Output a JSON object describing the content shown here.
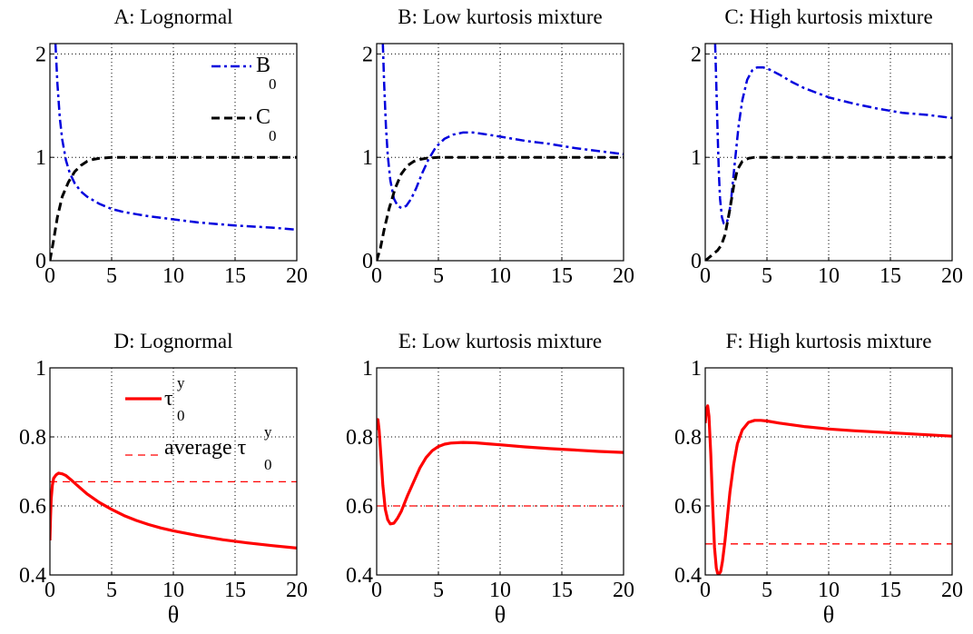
{
  "chart_data": [
    {
      "id": "A",
      "type": "line",
      "title": "A: Lognormal",
      "xlim": [
        0,
        20
      ],
      "ylim": [
        0,
        2.1
      ],
      "xticks": [
        "0",
        "5",
        "10",
        "15",
        "20"
      ],
      "yticks": [
        "0",
        "1",
        "2"
      ],
      "xlabel": "",
      "grid": true,
      "legend": {
        "placement": "top-right",
        "entries": [
          {
            "main": "B",
            "sub": "0",
            "series": 0
          },
          {
            "main": "C",
            "sub": "0",
            "series": 1
          }
        ]
      },
      "series": [
        {
          "name": "B0",
          "color": "#0000dd",
          "style": "dashdot",
          "x": [
            0.45,
            0.6,
            0.8,
            1.0,
            1.3,
            1.6,
            2.0,
            2.5,
            3,
            4,
            5,
            6,
            7,
            8,
            10,
            12,
            15,
            18,
            20
          ],
          "y": [
            2.1,
            1.72,
            1.38,
            1.17,
            0.97,
            0.85,
            0.75,
            0.67,
            0.62,
            0.55,
            0.5,
            0.47,
            0.45,
            0.43,
            0.4,
            0.37,
            0.34,
            0.32,
            0.3
          ]
        },
        {
          "name": "C0",
          "color": "#000000",
          "style": "dash",
          "x": [
            0,
            0.3,
            0.6,
            1.0,
            1.5,
            2.0,
            2.5,
            3,
            3.5,
            4,
            5,
            6,
            8,
            10,
            15,
            20
          ],
          "y": [
            0,
            0.2,
            0.42,
            0.62,
            0.76,
            0.86,
            0.92,
            0.96,
            0.98,
            0.99,
            1,
            1,
            1,
            1,
            1,
            1
          ]
        }
      ]
    },
    {
      "id": "B",
      "type": "line",
      "title": "B: Low kurtosis mixture",
      "xlim": [
        0,
        20
      ],
      "ylim": [
        0,
        2.1
      ],
      "xticks": [
        "0",
        "5",
        "10",
        "15",
        "20"
      ],
      "yticks": [
        "0",
        "1",
        "2"
      ],
      "xlabel": "",
      "grid": true,
      "series": [
        {
          "name": "B0",
          "color": "#0000dd",
          "style": "dashdot",
          "x": [
            0.5,
            0.6,
            0.75,
            0.9,
            1.1,
            1.4,
            1.7,
            2.0,
            2.4,
            2.8,
            3.2,
            3.7,
            4.2,
            4.8,
            5.5,
            6.2,
            7,
            7.8,
            9,
            10,
            12,
            14,
            16,
            18,
            20
          ],
          "y": [
            2.1,
            1.72,
            1.3,
            1.02,
            0.78,
            0.6,
            0.53,
            0.51,
            0.53,
            0.6,
            0.7,
            0.85,
            0.98,
            1.1,
            1.18,
            1.22,
            1.24,
            1.24,
            1.22,
            1.2,
            1.16,
            1.13,
            1.09,
            1.06,
            1.03
          ]
        },
        {
          "name": "C0",
          "color": "#000000",
          "style": "dash",
          "x": [
            0,
            0.3,
            0.6,
            1.0,
            1.5,
            2.0,
            2.5,
            3,
            3.5,
            4,
            5,
            6,
            8,
            10,
            15,
            20
          ],
          "y": [
            0,
            0.12,
            0.3,
            0.5,
            0.7,
            0.84,
            0.92,
            0.96,
            0.98,
            0.99,
            1,
            1,
            1,
            1,
            1,
            1
          ]
        }
      ]
    },
    {
      "id": "C",
      "type": "line",
      "title": "C: High kurtosis mixture",
      "xlim": [
        0,
        20
      ],
      "ylim": [
        0,
        2.1
      ],
      "xticks": [
        "0",
        "5",
        "10",
        "15",
        "20"
      ],
      "yticks": [
        "0",
        "1",
        "2"
      ],
      "xlabel": "",
      "grid": true,
      "series": [
        {
          "name": "B0",
          "color": "#0000dd",
          "style": "dashdot",
          "x": [
            0.8,
            0.9,
            1.0,
            1.1,
            1.2,
            1.35,
            1.5,
            1.7,
            1.9,
            2.1,
            2.4,
            2.7,
            3.0,
            3.4,
            3.8,
            4.2,
            4.7,
            5.2,
            6,
            7,
            8,
            10,
            12,
            14,
            16,
            18,
            20
          ],
          "y": [
            2.1,
            1.7,
            1.25,
            0.85,
            0.6,
            0.42,
            0.36,
            0.36,
            0.42,
            0.6,
            0.95,
            1.3,
            1.55,
            1.75,
            1.84,
            1.87,
            1.87,
            1.85,
            1.8,
            1.73,
            1.67,
            1.58,
            1.52,
            1.47,
            1.43,
            1.41,
            1.38
          ]
        },
        {
          "name": "C0",
          "color": "#000000",
          "style": "dash",
          "x": [
            0,
            0.3,
            0.6,
            1.0,
            1.3,
            1.6,
            2.0,
            2.3,
            2.6,
            3.0,
            3.5,
            4,
            5,
            6,
            8,
            10,
            15,
            20
          ],
          "y": [
            0,
            0.03,
            0.06,
            0.1,
            0.15,
            0.25,
            0.5,
            0.72,
            0.88,
            0.96,
            0.99,
            1,
            1,
            1,
            1,
            1,
            1,
            1
          ]
        }
      ]
    },
    {
      "id": "D",
      "type": "line",
      "title": "D: Lognormal",
      "xlim": [
        0,
        20
      ],
      "ylim": [
        0.4,
        1.0
      ],
      "xticks": [
        "0",
        "5",
        "10",
        "15",
        "20"
      ],
      "yticks": [
        "0.4",
        "0.6",
        "0.8",
        "1"
      ],
      "xlabel": "θ",
      "grid": true,
      "legend": {
        "placement": "top-left",
        "entries": [
          {
            "main": "τ",
            "sub": "0",
            "sup": "y",
            "series": 0
          },
          {
            "main": "average τ",
            "sub": "0",
            "sup": "y",
            "series": 1
          }
        ]
      },
      "series": [
        {
          "name": "tau0y",
          "color": "#ff0000",
          "style": "solid",
          "x": [
            0,
            0.05,
            0.1,
            0.2,
            0.3,
            0.5,
            0.7,
            1.0,
            1.3,
            1.7,
            2.2,
            3,
            4,
            5,
            6,
            7,
            8,
            9,
            10,
            12,
            14,
            16,
            18,
            20
          ],
          "y": [
            0.5,
            0.57,
            0.62,
            0.66,
            0.68,
            0.69,
            0.695,
            0.693,
            0.688,
            0.676,
            0.66,
            0.635,
            0.61,
            0.59,
            0.572,
            0.558,
            0.546,
            0.536,
            0.528,
            0.514,
            0.502,
            0.493,
            0.485,
            0.478
          ]
        },
        {
          "name": "average",
          "color": "#ff0000",
          "style": "thindash",
          "x": [
            0,
            20
          ],
          "y": [
            0.67,
            0.67
          ]
        }
      ]
    },
    {
      "id": "E",
      "type": "line",
      "title": "E: Low kurtosis mixture",
      "xlim": [
        0,
        20
      ],
      "ylim": [
        0.4,
        1.0
      ],
      "xticks": [
        "0",
        "5",
        "10",
        "15",
        "20"
      ],
      "yticks": [
        "0.4",
        "0.6",
        "0.8",
        "1"
      ],
      "xlabel": "θ",
      "grid": true,
      "series": [
        {
          "name": "tau0y",
          "color": "#ff0000",
          "style": "solid",
          "x": [
            0,
            0.1,
            0.2,
            0.35,
            0.5,
            0.7,
            0.9,
            1.1,
            1.4,
            1.7,
            2.0,
            2.5,
            3,
            3.5,
            4,
            4.5,
            5,
            5.5,
            6,
            7,
            8,
            9,
            10,
            12,
            14,
            16,
            18,
            20
          ],
          "y": [
            0.82,
            0.85,
            0.82,
            0.74,
            0.66,
            0.59,
            0.56,
            0.548,
            0.55,
            0.565,
            0.585,
            0.63,
            0.67,
            0.71,
            0.74,
            0.76,
            0.772,
            0.779,
            0.782,
            0.784,
            0.783,
            0.78,
            0.777,
            0.771,
            0.766,
            0.762,
            0.758,
            0.755
          ]
        },
        {
          "name": "average",
          "color": "#ff0000",
          "style": "dashdotthin",
          "x": [
            0,
            20
          ],
          "y": [
            0.6,
            0.6
          ]
        }
      ]
    },
    {
      "id": "F",
      "type": "line",
      "title": "F: High kurtosis mixture",
      "xlim": [
        0,
        20
      ],
      "ylim": [
        0.4,
        1.0
      ],
      "xticks": [
        "0",
        "5",
        "10",
        "15",
        "20"
      ],
      "yticks": [
        "0.4",
        "0.6",
        "0.8",
        "1"
      ],
      "xlabel": "θ",
      "grid": true,
      "series": [
        {
          "name": "tau0y",
          "color": "#ff0000",
          "style": "solid",
          "x": [
            0,
            0.1,
            0.2,
            0.3,
            0.45,
            0.6,
            0.75,
            0.9,
            1.0,
            1.1,
            1.25,
            1.4,
            1.6,
            1.8,
            2.0,
            2.3,
            2.6,
            3.0,
            3.5,
            4,
            4.5,
            5,
            6,
            7,
            8,
            10,
            12,
            14,
            16,
            18,
            20
          ],
          "y": [
            0.84,
            0.88,
            0.89,
            0.86,
            0.75,
            0.6,
            0.48,
            0.42,
            0.405,
            0.402,
            0.41,
            0.44,
            0.5,
            0.57,
            0.64,
            0.72,
            0.78,
            0.82,
            0.842,
            0.848,
            0.848,
            0.846,
            0.84,
            0.835,
            0.83,
            0.823,
            0.818,
            0.814,
            0.81,
            0.806,
            0.802
          ]
        },
        {
          "name": "average",
          "color": "#ff0000",
          "style": "thindash",
          "x": [
            0,
            20
          ],
          "y": [
            0.49,
            0.49
          ]
        }
      ]
    }
  ]
}
